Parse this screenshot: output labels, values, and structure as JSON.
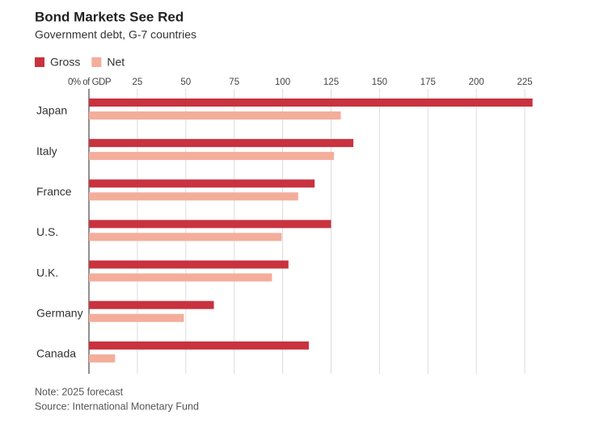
{
  "chart_data": {
    "type": "hbar",
    "title": "Bond Markets See Red",
    "subtitle": "Government debt, G-7 countries",
    "categories": [
      "Japan",
      "Italy",
      "France",
      "U.S.",
      "U.K.",
      "Germany",
      "Canada"
    ],
    "series": [
      {
        "name": "Gross",
        "color": "#c9323f",
        "values": [
          229,
          136.5,
          116.5,
          125,
          103,
          64.5,
          113.5
        ]
      },
      {
        "name": "Net",
        "color": "#f4ad9a",
        "values": [
          130,
          126.5,
          108,
          99.5,
          94.5,
          49,
          13.5
        ]
      }
    ],
    "xlim": [
      0,
      235
    ],
    "xticks": [
      {
        "value": 0,
        "label": "0% of GDP"
      },
      25,
      50,
      75,
      100,
      125,
      150,
      175,
      200,
      225
    ],
    "grid": true,
    "legend": "top-left",
    "notes": [
      "Note: 2025 forecast",
      "Source: International Monetary Fund"
    ]
  }
}
